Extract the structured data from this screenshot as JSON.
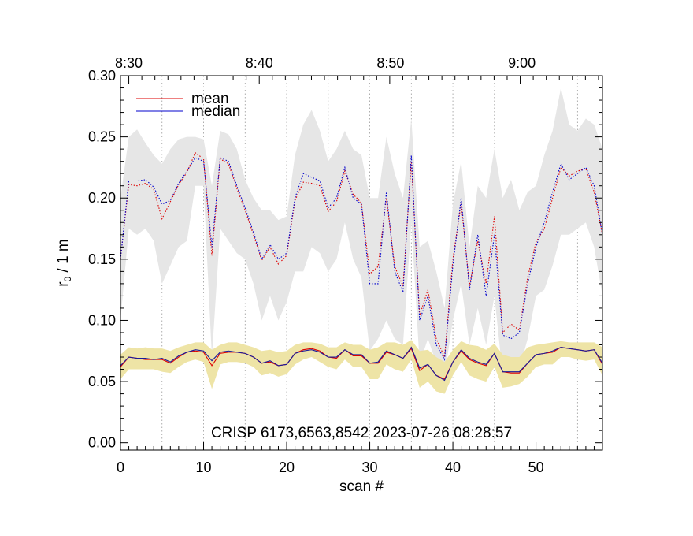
{
  "chart_data": {
    "type": "line",
    "title": "",
    "xlabel": "scan #",
    "ylabel": "r₀ / 1 m",
    "ylabel_main": "r",
    "ylabel_sub": "0",
    "ylabel_rest": " / 1 m",
    "xlim": [
      0,
      58
    ],
    "ylim": [
      0,
      0.3
    ],
    "x_ticks": [
      0,
      10,
      20,
      30,
      40,
      50
    ],
    "x_tick_labels": [
      "0",
      "10",
      "20",
      "30",
      "40",
      "50"
    ],
    "y_ticks": [
      0.0,
      0.05,
      0.1,
      0.15,
      0.2,
      0.25,
      0.3
    ],
    "y_tick_labels": [
      "0.00",
      "0.05",
      "0.10",
      "0.15",
      "0.20",
      "0.25",
      "0.30"
    ],
    "top_axis": {
      "positions": [
        1.0,
        16.7,
        32.5,
        48.3
      ],
      "labels": [
        "8:30",
        "8:40",
        "8:50",
        "9:00"
      ]
    },
    "vertical_gridlines_x": [
      5,
      10,
      15,
      20,
      25,
      30,
      35,
      40,
      45,
      50,
      55
    ],
    "annotation": "CRISP 6173,6563,8542 2023-07-26 08:28:57",
    "legend": [
      {
        "label": "mean",
        "color": "#dd0000"
      },
      {
        "label": "median",
        "color": "#0000cc"
      }
    ],
    "colors": {
      "upper_band": "#e6e6e6",
      "lower_band": "#eee4a6",
      "mean": "#dd0000",
      "median": "#0000cc",
      "median_solid": "#1a1a9a"
    },
    "upper_mean": [
      0.15,
      0.211,
      0.21,
      0.212,
      0.207,
      0.183,
      0.197,
      0.211,
      0.221,
      0.237,
      0.232,
      0.153,
      0.232,
      0.228,
      0.208,
      0.19,
      0.17,
      0.149,
      0.16,
      0.146,
      0.153,
      0.198,
      0.213,
      0.212,
      0.21,
      0.189,
      0.197,
      0.222,
      0.203,
      0.196,
      0.138,
      0.144,
      0.2,
      0.144,
      0.128,
      0.23,
      0.104,
      0.125,
      0.085,
      0.07,
      0.15,
      0.196,
      0.128,
      0.165,
      0.13,
      0.185,
      0.09,
      0.097,
      0.092,
      0.135,
      0.164,
      0.175,
      0.2,
      0.225,
      0.218,
      0.222,
      0.224,
      0.205,
      0.17
    ],
    "upper_median": [
      0.15,
      0.214,
      0.214,
      0.215,
      0.209,
      0.195,
      0.198,
      0.212,
      0.222,
      0.233,
      0.23,
      0.16,
      0.233,
      0.23,
      0.21,
      0.192,
      0.172,
      0.15,
      0.162,
      0.15,
      0.155,
      0.2,
      0.22,
      0.217,
      0.214,
      0.192,
      0.2,
      0.225,
      0.2,
      0.195,
      0.13,
      0.13,
      0.205,
      0.14,
      0.123,
      0.235,
      0.1,
      0.12,
      0.08,
      0.068,
      0.145,
      0.2,
      0.125,
      0.17,
      0.12,
      0.17,
      0.088,
      0.085,
      0.09,
      0.13,
      0.16,
      0.18,
      0.205,
      0.228,
      0.215,
      0.22,
      0.225,
      0.21,
      0.17
    ],
    "upper_band_high": [
      0.2,
      0.25,
      0.256,
      0.245,
      0.235,
      0.228,
      0.24,
      0.248,
      0.25,
      0.25,
      0.248,
      0.21,
      0.255,
      0.252,
      0.24,
      0.215,
      0.2,
      0.19,
      0.19,
      0.182,
      0.185,
      0.235,
      0.26,
      0.272,
      0.255,
      0.23,
      0.24,
      0.255,
      0.24,
      0.235,
      0.2,
      0.2,
      0.25,
      0.22,
      0.2,
      0.265,
      0.16,
      0.165,
      0.14,
      0.11,
      0.195,
      0.23,
      0.16,
      0.21,
      0.2,
      0.24,
      0.2,
      0.215,
      0.19,
      0.205,
      0.21,
      0.235,
      0.255,
      0.29,
      0.26,
      0.255,
      0.265,
      0.26,
      0.24
    ],
    "upper_band_low": [
      0.1,
      0.175,
      0.17,
      0.175,
      0.165,
      0.13,
      0.145,
      0.16,
      0.165,
      0.21,
      0.21,
      0.07,
      0.175,
      0.165,
      0.155,
      0.15,
      0.13,
      0.1,
      0.12,
      0.1,
      0.115,
      0.14,
      0.14,
      0.16,
      0.155,
      0.14,
      0.15,
      0.18,
      0.15,
      0.135,
      0.075,
      0.085,
      0.1,
      0.085,
      0.08,
      0.18,
      0.065,
      0.085,
      0.065,
      0.055,
      0.1,
      0.13,
      0.08,
      0.11,
      0.08,
      0.12,
      0.055,
      0.06,
      0.06,
      0.085,
      0.12,
      0.125,
      0.145,
      0.17,
      0.17,
      0.175,
      0.18,
      0.16,
      0.12
    ],
    "lower_mean": [
      0.062,
      0.07,
      0.069,
      0.068,
      0.068,
      0.068,
      0.065,
      0.07,
      0.074,
      0.075,
      0.074,
      0.063,
      0.073,
      0.074,
      0.074,
      0.073,
      0.07,
      0.065,
      0.066,
      0.063,
      0.064,
      0.073,
      0.076,
      0.077,
      0.075,
      0.07,
      0.069,
      0.076,
      0.071,
      0.071,
      0.065,
      0.065,
      0.074,
      0.072,
      0.069,
      0.077,
      0.059,
      0.064,
      0.055,
      0.052,
      0.066,
      0.075,
      0.068,
      0.065,
      0.063,
      0.073,
      0.058,
      0.057,
      0.057,
      0.065,
      0.072,
      0.073,
      0.074,
      0.078,
      0.077,
      0.076,
      0.075,
      0.076,
      0.064
    ],
    "lower_median": [
      0.063,
      0.07,
      0.069,
      0.069,
      0.068,
      0.069,
      0.066,
      0.071,
      0.074,
      0.076,
      0.075,
      0.067,
      0.074,
      0.075,
      0.074,
      0.073,
      0.07,
      0.065,
      0.067,
      0.063,
      0.064,
      0.073,
      0.075,
      0.076,
      0.074,
      0.07,
      0.07,
      0.076,
      0.072,
      0.072,
      0.065,
      0.066,
      0.075,
      0.072,
      0.069,
      0.078,
      0.061,
      0.064,
      0.055,
      0.051,
      0.066,
      0.076,
      0.069,
      0.066,
      0.064,
      0.073,
      0.058,
      0.058,
      0.058,
      0.065,
      0.072,
      0.073,
      0.075,
      0.078,
      0.077,
      0.076,
      0.075,
      0.076,
      0.065
    ],
    "lower_band_high": [
      0.072,
      0.078,
      0.077,
      0.078,
      0.077,
      0.077,
      0.075,
      0.078,
      0.08,
      0.082,
      0.082,
      0.076,
      0.08,
      0.082,
      0.082,
      0.08,
      0.078,
      0.075,
      0.076,
      0.074,
      0.075,
      0.08,
      0.082,
      0.082,
      0.081,
      0.078,
      0.078,
      0.082,
      0.08,
      0.08,
      0.076,
      0.078,
      0.082,
      0.082,
      0.08,
      0.084,
      0.075,
      0.076,
      0.07,
      0.066,
      0.076,
      0.083,
      0.08,
      0.079,
      0.076,
      0.081,
      0.072,
      0.07,
      0.07,
      0.078,
      0.08,
      0.081,
      0.082,
      0.083,
      0.082,
      0.082,
      0.082,
      0.082,
      0.078
    ],
    "lower_band_low": [
      0.052,
      0.06,
      0.06,
      0.06,
      0.06,
      0.058,
      0.057,
      0.062,
      0.066,
      0.068,
      0.066,
      0.044,
      0.064,
      0.066,
      0.066,
      0.065,
      0.062,
      0.055,
      0.057,
      0.054,
      0.056,
      0.064,
      0.068,
      0.07,
      0.066,
      0.062,
      0.06,
      0.068,
      0.062,
      0.062,
      0.052,
      0.052,
      0.064,
      0.06,
      0.058,
      0.068,
      0.045,
      0.05,
      0.042,
      0.04,
      0.055,
      0.066,
      0.055,
      0.052,
      0.05,
      0.062,
      0.045,
      0.046,
      0.048,
      0.054,
      0.062,
      0.064,
      0.064,
      0.07,
      0.07,
      0.068,
      0.067,
      0.068,
      0.055
    ]
  }
}
